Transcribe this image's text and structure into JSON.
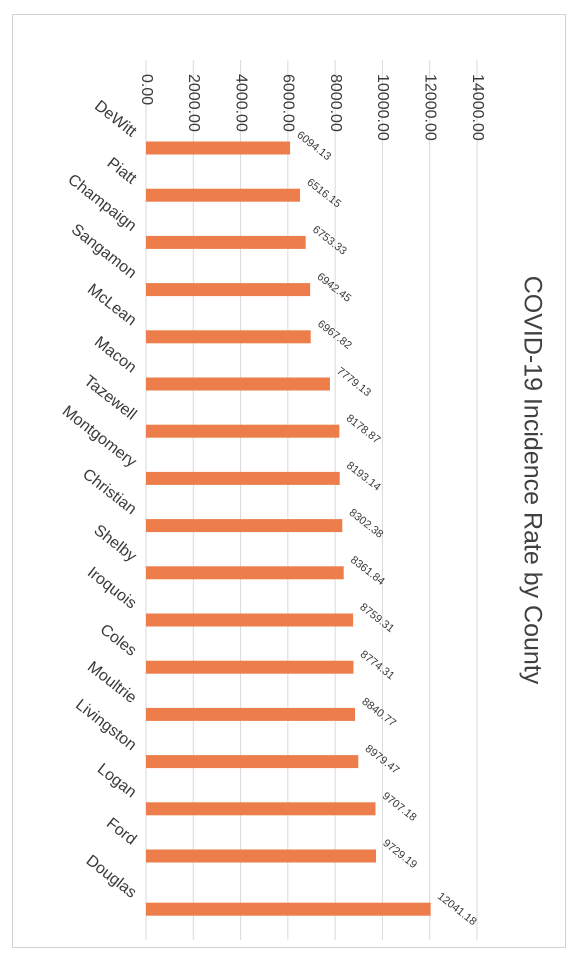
{
  "chart_data": {
    "type": "bar",
    "orientation": "horizontal",
    "title": "COVID-19 Incidence Rate by County",
    "categories": [
      "DeWitt",
      "Piatt",
      "Champaign",
      "Sangamon",
      "McLean",
      "Macon",
      "Tazewell",
      "Montgomery",
      "Christian",
      "Shelby",
      "Iroquois",
      "Coles",
      "Moultrie",
      "Livingston",
      "Logan",
      "Ford",
      "Douglas"
    ],
    "values": [
      6094.13,
      6516.15,
      6753.33,
      6942.45,
      6967.82,
      7779.13,
      8178.87,
      8193.14,
      8302.38,
      8361.84,
      8759.31,
      8774.31,
      8840.77,
      8979.47,
      9707.18,
      9729.19,
      12041.18
    ],
    "data_labels": [
      "6094.13",
      "6516.15",
      "6753.33",
      "6942.45",
      "6967.82",
      "7779.13",
      "8178.87",
      "8193.14",
      "8302.38",
      "8361.84",
      "8759.31",
      "8774.31",
      "8840.77",
      "8979.47",
      "9707.18",
      "9729.19",
      "12041.18"
    ],
    "value_axis_ticks": [
      "0.00",
      "2000.00",
      "4000.00",
      "6000.00",
      "8000.00",
      "10000.00",
      "12000.00",
      "14000.00"
    ],
    "value_axis_range": [
      0,
      14000
    ],
    "grid": true,
    "bar_color": "#ed7d4b",
    "gridline_color": "#d9d9d9",
    "page_rotation": "90deg clockwise"
  }
}
